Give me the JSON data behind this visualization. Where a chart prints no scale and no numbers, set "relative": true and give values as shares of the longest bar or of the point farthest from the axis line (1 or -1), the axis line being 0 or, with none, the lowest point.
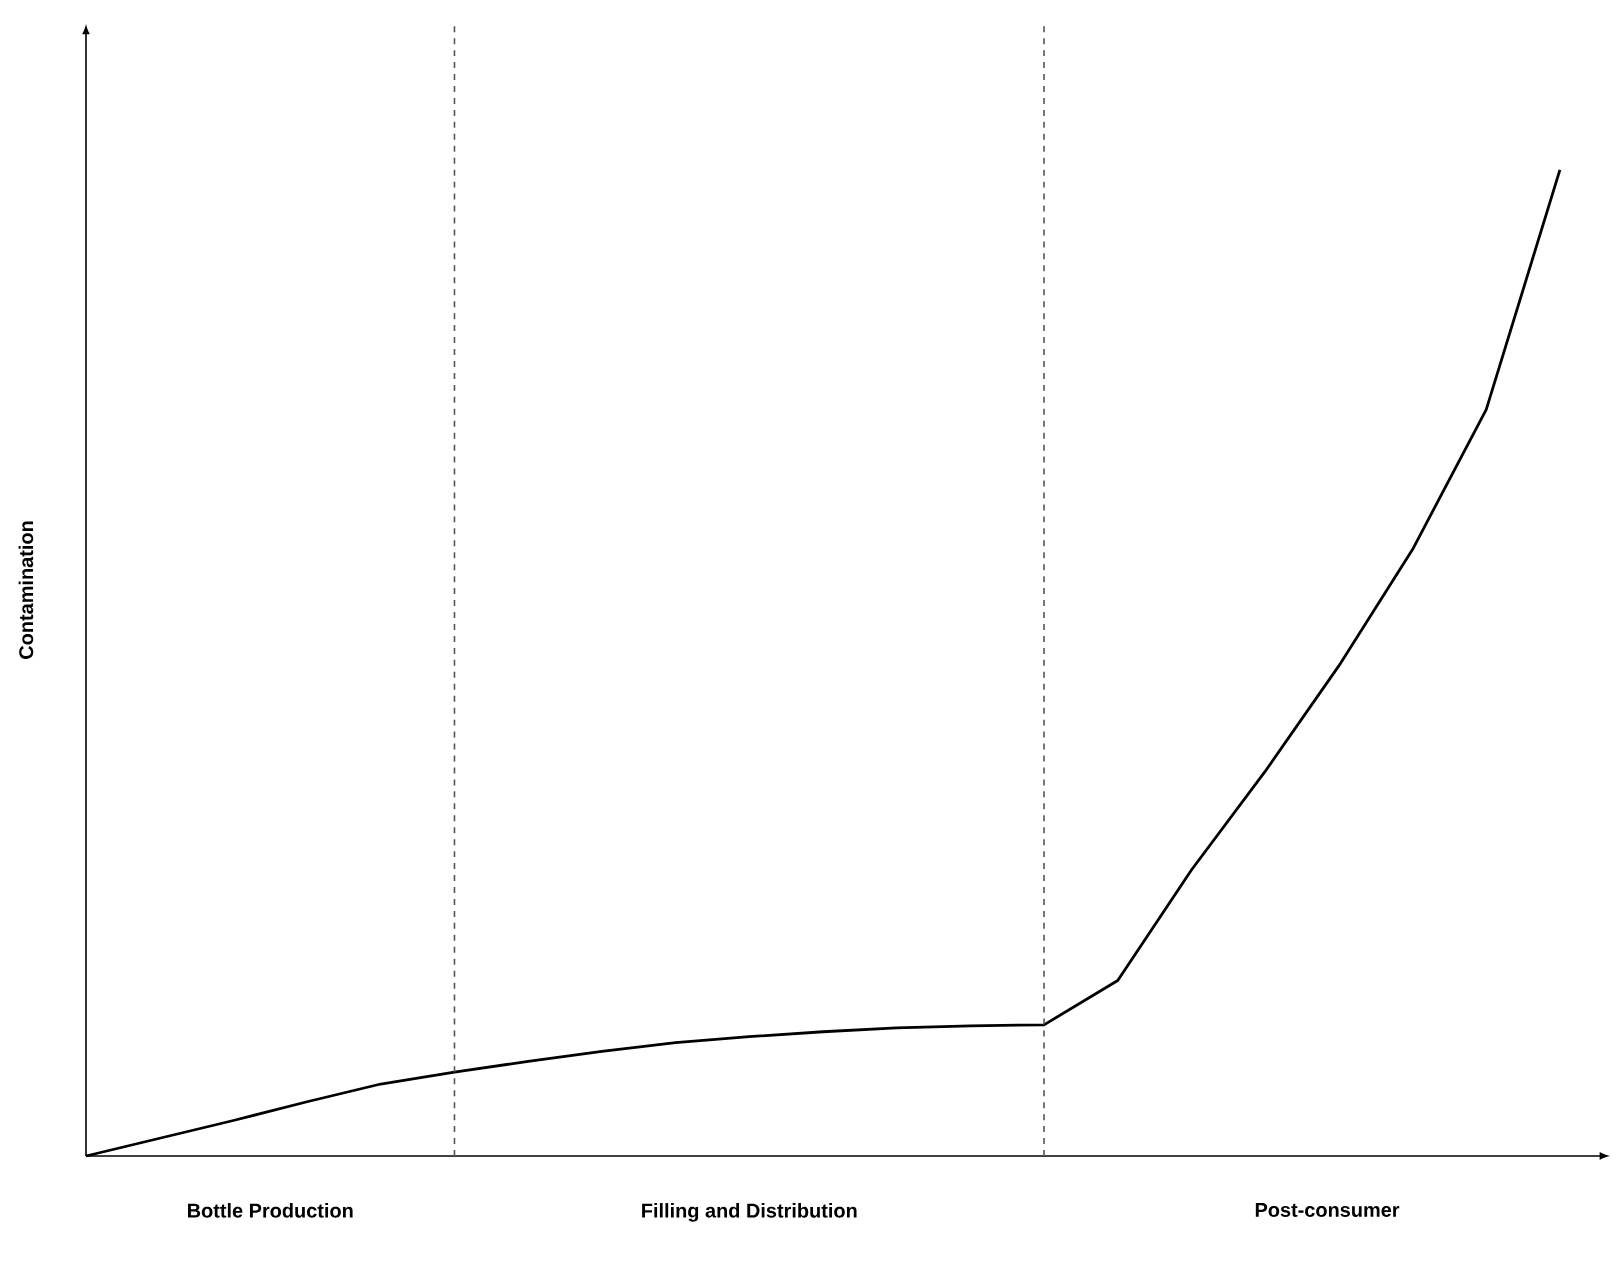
{
  "chart_data": {
    "type": "line",
    "relative": true,
    "ylabel": "Contamination",
    "marker": "none",
    "line_style": "solid",
    "categories": [
      null,
      null,
      null,
      null,
      null,
      null,
      null,
      null,
      null,
      null,
      null,
      null,
      null,
      null,
      null,
      null,
      null,
      null,
      null,
      null,
      null
    ],
    "series": [
      {
        "color": "#000000",
        "values": [
          0,
          0.018,
          0.036,
          0.055,
          0.073,
          0.085,
          0.096,
          0.106,
          0.115,
          0.121,
          0.126,
          0.13,
          0.132,
          0.133,
          0.178,
          0.29,
          0.39,
          0.497,
          0.615,
          0.757,
          1
        ]
      }
    ],
    "annotations": [
      "Bottle Production",
      "Filling and Distribution",
      "Post-consumer"
    ]
  }
}
